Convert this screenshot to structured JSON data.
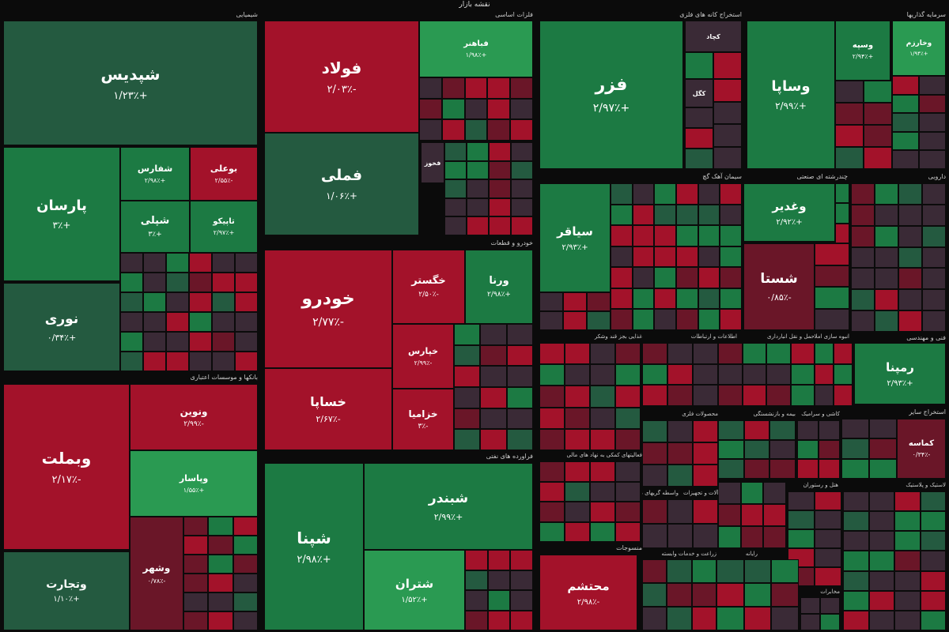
{
  "title": "نقشه بازار",
  "colors": {
    "green": "#1c7a43",
    "green_light": "#2a9a52",
    "green_dark": "#245a40",
    "red": "#a3122a",
    "red_dark": "#6a1628",
    "neutral": "#3a2a36",
    "background": "#0b0b0b"
  },
  "chart_data": {
    "type": "treemap",
    "sectors": [
      {
        "name": "شیمیایی",
        "tiles": [
          {
            "name": "شپدیس",
            "change": "+۱/۲۳٪",
            "value": 1.23
          },
          {
            "name": "پارسان",
            "change": "+۳٪",
            "value": 3
          },
          {
            "name": "نوری",
            "change": "+۰/۳۴٪",
            "value": 0.34
          },
          {
            "name": "شفارس",
            "change": "+۲/۹۸٪",
            "value": 2.98
          },
          {
            "name": "بوعلی",
            "change": "-۲/۵۵٪",
            "value": -2.55
          },
          {
            "name": "شپلی",
            "change": "+۳٪",
            "value": 3
          },
          {
            "name": "تاپیکو",
            "change": "+۲/۹۷٪",
            "value": 2.97
          }
        ]
      },
      {
        "name": "فلزات اساسی",
        "tiles": [
          {
            "name": "فولاد",
            "change": "-۲/۰۳٪",
            "value": -2.03
          },
          {
            "name": "فملی",
            "change": "+۱/۰۶٪",
            "value": 1.06
          },
          {
            "name": "فباهنر",
            "change": "+۱/۹۸٪",
            "value": 1.98
          },
          {
            "name": "فخوز",
            "change": "",
            "value": null
          }
        ]
      },
      {
        "name": "استخراج کانه های فلزی",
        "tiles": [
          {
            "name": "فزر",
            "change": "+۲/۹۷٪",
            "value": 2.97
          },
          {
            "name": "کگل",
            "change": "",
            "value": null
          },
          {
            "name": "کچاد",
            "change": "",
            "value": null
          }
        ]
      },
      {
        "name": "سرمایه گذاریها",
        "tiles": [
          {
            "name": "وساپا",
            "change": "+۲/۹۹٪",
            "value": 2.99
          },
          {
            "name": "وسپه",
            "change": "+۲/۹۴٪",
            "value": 2.94
          },
          {
            "name": "وخارزم",
            "change": "+۱/۹۴٪",
            "value": 1.94
          }
        ]
      },
      {
        "name": "خودرو و قطعات",
        "tiles": [
          {
            "name": "خودرو",
            "change": "-۲/۷۷٪",
            "value": -2.77
          },
          {
            "name": "خگستر",
            "change": "-۲/۵۰٪",
            "value": -2.5
          },
          {
            "name": "ورنا",
            "change": "+۲/۹۸٪",
            "value": 2.98
          },
          {
            "name": "خساپا",
            "change": "-۲/۶۷٪",
            "value": -2.67
          },
          {
            "name": "خپارس",
            "change": "-۲/۹۹٪",
            "value": -2.99
          },
          {
            "name": "خزامیا",
            "change": "-۳٪",
            "value": -3
          }
        ]
      },
      {
        "name": "سیمان آهک گچ",
        "tiles": [
          {
            "name": "سیاقر",
            "change": "+۲/۹۳٪",
            "value": 2.93
          }
        ]
      },
      {
        "name": "چندرشته ای صنعتی",
        "tiles": [
          {
            "name": "وغدیر",
            "change": "+۲/۹۲٪",
            "value": 2.92
          },
          {
            "name": "شستا",
            "change": "-۰/۸۵٪",
            "value": -0.85
          }
        ]
      },
      {
        "name": "دارویی",
        "tiles": []
      },
      {
        "name": "بانکها و موسسات اعتباری",
        "tiles": [
          {
            "name": "وبملت",
            "change": "-۲/۱۷٪",
            "value": -2.17
          },
          {
            "name": "ونوین",
            "change": "-۲/۹۹٪",
            "value": -2.99
          },
          {
            "name": "وپاسار",
            "change": "+۱/۵۵٪",
            "value": 1.55
          },
          {
            "name": "وتجارت",
            "change": "+۱/۱۰٪",
            "value": 1.1
          },
          {
            "name": "وشهر",
            "change": "-۰/۷۸٪",
            "value": -0.78
          }
        ]
      },
      {
        "name": "فراورده های نفتی",
        "tiles": [
          {
            "name": "شپنا",
            "change": "+۲/۹۸٪",
            "value": 2.98
          },
          {
            "name": "شبندر",
            "change": "+۲/۹۹٪",
            "value": 2.99
          },
          {
            "name": "شتران",
            "change": "+۱/۵۲٪",
            "value": 1.52
          }
        ]
      },
      {
        "name": "فنی و مهندسی",
        "tiles": [
          {
            "name": "رمپنا",
            "change": "+۲/۹۳٪",
            "value": 2.93
          }
        ]
      },
      {
        "name": "استخراج سایر",
        "tiles": [
          {
            "name": "کماسه",
            "change": "-۰/۳۴٪",
            "value": -0.34
          }
        ]
      },
      {
        "name": "منسوجات",
        "tiles": [
          {
            "name": "محتشم",
            "change": "-۲/۹۸٪",
            "value": -2.98
          }
        ]
      }
    ],
    "minor_sector_labels": [
      "غذایی بجز قند وشکر",
      "اطلاعات و ارتباطات",
      "حمل و نقل انبارداری",
      "انبوه سازی املاک و مستغلات",
      "فعالیتهای کمکی به نهاد های مالی",
      "محصولات فلزی",
      "ماشین آلات و تجهیزات",
      "واسطه گریهای مالی و پولی",
      "زراعت و خدمات وابسته",
      "رایانه",
      "مخابرات",
      "بیمه و بازنشستگی",
      "کاشی و سرامیک",
      "دستگاههای برقی",
      "لاستیک و پلاستیک",
      "هتل و رستوران"
    ]
  }
}
